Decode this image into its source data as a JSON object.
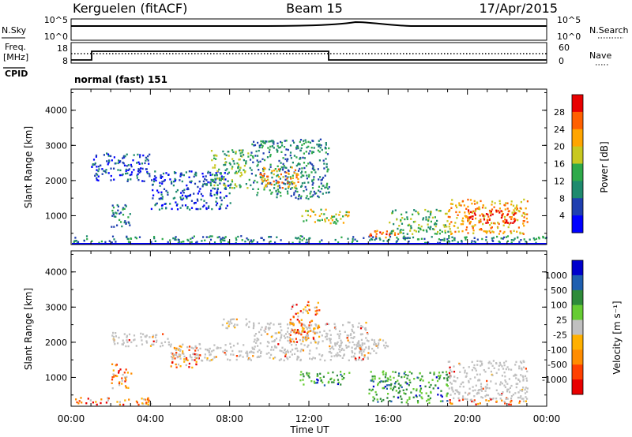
{
  "header": {
    "station": "Kerguelen (fitACF)",
    "beam": "Beam 15",
    "date": "17/Apr/2015"
  },
  "top_panels": {
    "nsky_label": "N.Sky",
    "nsky_ticks": [
      "10^5",
      "10^0"
    ],
    "nsearch_label": "N.Search",
    "nsearch_ticks": [
      "10^5",
      "10^0"
    ],
    "freq_label_line1": "Freq.",
    "freq_label_line2": "[MHz]",
    "freq_ticks": [
      "18",
      "8"
    ],
    "nave_label": "Nave",
    "nave_ticks": [
      "60",
      "0"
    ],
    "cpid_label": "CPID",
    "cpid_text": "normal (fast) 151"
  },
  "colors": {
    "power": [
      "#0000ff",
      "#1f3fb0",
      "#1e8a6e",
      "#2faa4a",
      "#c8c820",
      "#ffa500",
      "#ff6000",
      "#e80000"
    ],
    "velocity_neg": [
      "#e80000",
      "#ff4000",
      "#ff8c00",
      "#ffb000"
    ],
    "velocity_pos": [
      "#0000cc",
      "#1f5fb0",
      "#2e8b3a",
      "#66cc33"
    ],
    "ground": "#c0c0c0"
  },
  "chart_data": [
    {
      "type": "heatmap",
      "panel": "power",
      "xlabel": "Time UT",
      "ylabel": "Slant Range [km]",
      "x_ticks": [
        "00:00",
        "04:00",
        "08:00",
        "12:00",
        "16:00",
        "20:00",
        "00:00"
      ],
      "y_ticks": [
        "1000",
        "2000",
        "3000",
        "4000"
      ],
      "xlim": [
        0,
        24
      ],
      "ylim": [
        180,
        4600
      ],
      "colorbar_label": "Power [dB]",
      "colorbar_ticks": [
        "28",
        "24",
        "20",
        "16",
        "12",
        "8",
        "4"
      ],
      "regions": [
        {
          "t0": 0.0,
          "t1": 24.0,
          "r0": 250,
          "r1": 450,
          "level": 2
        },
        {
          "t0": 2.0,
          "t1": 3.0,
          "r0": 700,
          "r1": 1400,
          "level": 2
        },
        {
          "t0": 1.0,
          "t1": 4.0,
          "r0": 2000,
          "r1": 2800,
          "level": 1
        },
        {
          "t0": 4.0,
          "t1": 8.0,
          "r0": 1200,
          "r1": 2300,
          "level": 1
        },
        {
          "t0": 7.0,
          "t1": 9.0,
          "r0": 1800,
          "r1": 2900,
          "level": 3
        },
        {
          "t0": 9.0,
          "t1": 13.0,
          "r0": 1500,
          "r1": 3200,
          "level": 2
        },
        {
          "t0": 9.5,
          "t1": 11.5,
          "r0": 1800,
          "r1": 2400,
          "level": 5
        },
        {
          "t0": 11.5,
          "t1": 14.0,
          "r0": 800,
          "r1": 1200,
          "level": 4
        },
        {
          "t0": 15.0,
          "t1": 16.5,
          "r0": 400,
          "r1": 600,
          "level": 6
        },
        {
          "t0": 16.0,
          "t1": 19.0,
          "r0": 500,
          "r1": 1200,
          "level": 3
        },
        {
          "t0": 19.0,
          "t1": 23.0,
          "r0": 500,
          "r1": 1500,
          "level": 5
        },
        {
          "t0": 20.0,
          "t1": 22.5,
          "r0": 800,
          "r1": 1200,
          "level": 7
        }
      ]
    },
    {
      "type": "heatmap",
      "panel": "velocity",
      "xlabel": "Time UT",
      "ylabel": "Slant Range [km]",
      "x_ticks": [
        "00:00",
        "04:00",
        "08:00",
        "12:00",
        "16:00",
        "20:00",
        "00:00"
      ],
      "y_ticks": [
        "1000",
        "2000",
        "3000",
        "4000"
      ],
      "xlim": [
        0,
        24
      ],
      "ylim": [
        180,
        4600
      ],
      "colorbar_label": "Velocity [m s⁻¹]",
      "colorbar_ticks": [
        "1000",
        "500",
        "100",
        "25",
        "-25",
        "-100",
        "-500",
        "-1000"
      ],
      "regions": [
        {
          "t0": 0.0,
          "t1": 4.0,
          "r0": 250,
          "r1": 450,
          "cat": "neg"
        },
        {
          "t0": 2.0,
          "t1": 3.0,
          "r0": 700,
          "r1": 1400,
          "cat": "neg"
        },
        {
          "t0": 2.0,
          "t1": 5.0,
          "r0": 1900,
          "r1": 2300,
          "cat": "ground"
        },
        {
          "t0": 5.0,
          "t1": 6.5,
          "r0": 1300,
          "r1": 1900,
          "cat": "neg"
        },
        {
          "t0": 5.0,
          "t1": 9.0,
          "r0": 1500,
          "r1": 2000,
          "cat": "ground"
        },
        {
          "t0": 7.5,
          "t1": 9.0,
          "r0": 2400,
          "r1": 2700,
          "cat": "ground"
        },
        {
          "t0": 9.0,
          "t1": 15.0,
          "r0": 1500,
          "r1": 2600,
          "cat": "ground"
        },
        {
          "t0": 11.0,
          "t1": 12.5,
          "r0": 2000,
          "r1": 3200,
          "cat": "neg"
        },
        {
          "t0": 11.5,
          "t1": 14.0,
          "r0": 800,
          "r1": 1200,
          "cat": "pos"
        },
        {
          "t0": 13.0,
          "t1": 16.0,
          "r0": 1700,
          "r1": 2100,
          "cat": "ground"
        },
        {
          "t0": 15.0,
          "t1": 19.0,
          "r0": 300,
          "r1": 1200,
          "cat": "pos"
        },
        {
          "t0": 19.0,
          "t1": 23.0,
          "r0": 400,
          "r1": 1500,
          "cat": "ground"
        },
        {
          "t0": 19.0,
          "t1": 23.0,
          "r0": 250,
          "r1": 400,
          "cat": "neg"
        }
      ]
    }
  ]
}
